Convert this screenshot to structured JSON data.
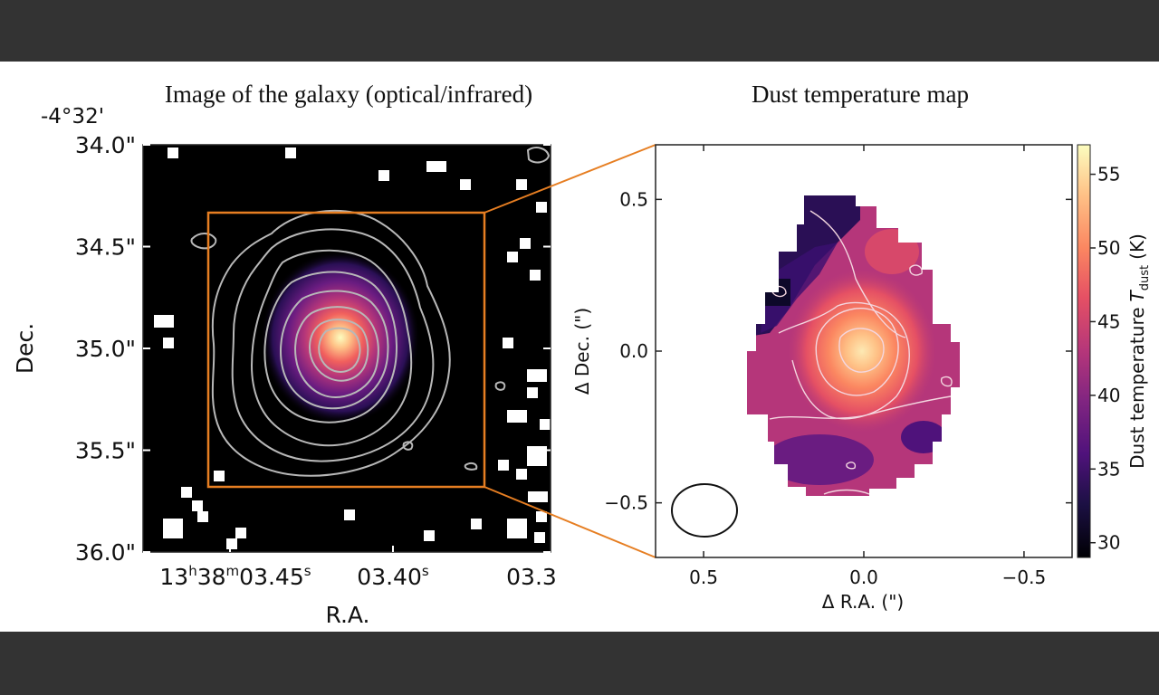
{
  "chart_data": [
    {
      "type": "heatmap",
      "title": "Image of the galaxy (optical/infrared)",
      "dec_top_label": "-4°32'",
      "xlabel": "R.A.",
      "ylabel": "Dec.",
      "x_ticks": [
        {
          "hours": "13",
          "minutes": "38",
          "seconds": "03.45",
          "unit": "s"
        },
        {
          "label": "03.40",
          "unit": "s"
        },
        {
          "label": "03.3",
          "unit": ""
        }
      ],
      "y_ticks": [
        "34.0\"",
        "34.5\"",
        "35.0\"",
        "35.5\"",
        "36.0\""
      ],
      "y_tick_values": [
        34.0,
        34.5,
        35.0,
        35.5,
        36.0
      ],
      "ylim": [
        34.0,
        36.0
      ],
      "colormap": "magma",
      "contours": true,
      "zoom_box_color": "#e67e22"
    },
    {
      "type": "heatmap",
      "title": "Dust temperature map",
      "xlabel": "Δ R.A. (\")",
      "ylabel": "Δ Dec. (\")",
      "x_ticks": [
        0.5,
        0.0,
        -0.5
      ],
      "x_tick_labels": [
        "0.5",
        "0.0",
        "−0.5"
      ],
      "xlim": [
        0.65,
        -0.65
      ],
      "y_ticks": [
        0.5,
        0.0,
        -0.5
      ],
      "y_tick_labels": [
        "0.5",
        "0.0",
        "−0.5"
      ],
      "ylim": [
        -0.68,
        0.68
      ],
      "colorbar": {
        "label_main": "Dust temperature",
        "label_symbol": "T",
        "label_subscript": "dust",
        "label_unit": "(K)",
        "ticks": [
          30,
          35,
          40,
          45,
          50,
          55
        ],
        "range": [
          29,
          57
        ],
        "colormap": "magma"
      },
      "peak_temperature": 55,
      "beam": "ellipse, lower-left"
    }
  ]
}
